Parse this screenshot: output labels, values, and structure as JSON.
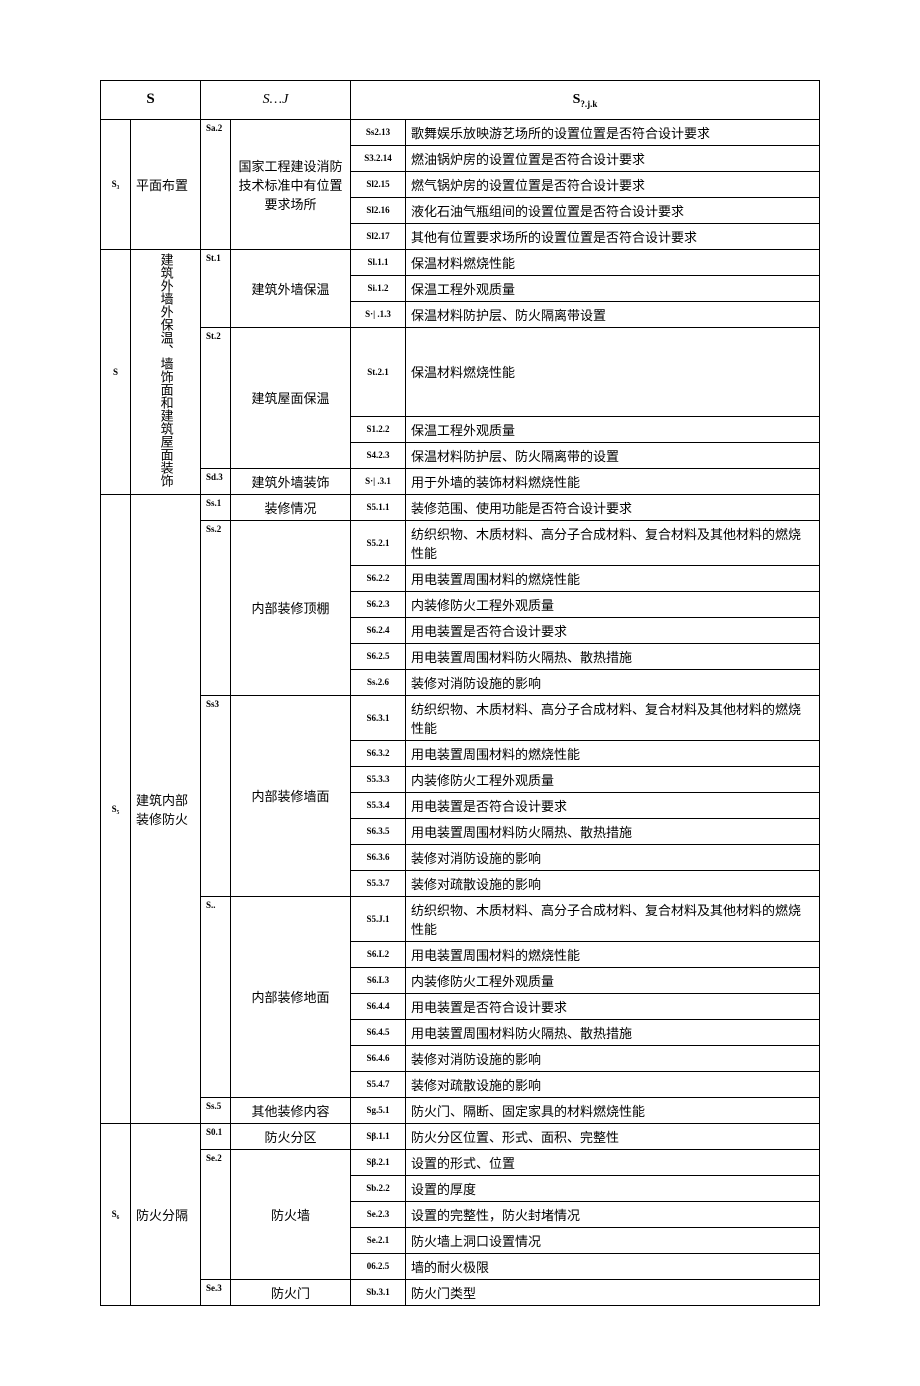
{
  "headers": {
    "s": "S",
    "sj": "S…J",
    "sjk_prefix": "S",
    "sjk_sub": "?.j.k"
  },
  "groups": [
    {
      "sid": "S₃",
      "sname": "平面布置",
      "subs": [
        {
          "jid": "Sa.2",
          "jname": "国家工程建设消防技术标准中有位置要求场所",
          "items": [
            {
              "kid": "Ss2.13",
              "kname": "歌舞娱乐放映游艺场所的设置位置是否符合设计要求"
            },
            {
              "kid": "S3.2.14",
              "kname": "燃油锅炉房的设置位置是否符合设计要求"
            },
            {
              "kid": "Sl2.15",
              "kname": "燃气锅炉房的设置位置是否符合设计要求"
            },
            {
              "kid": "Sl2.16",
              "kname": "液化石油气瓶组间的设置位置是否符合设计要求"
            },
            {
              "kid": "Sl2.17",
              "kname": "其他有位置要求场所的设置位置是否符合设计要求"
            }
          ]
        }
      ]
    },
    {
      "sid": "S",
      "sname_vertical": "建筑外墙外保温、墙饰面和建筑屋面装饰",
      "subs": [
        {
          "jid": "St.1",
          "jname": "建筑外墙保温",
          "items": [
            {
              "kid": "Sl.1.1",
              "kname": "保温材料燃烧性能"
            },
            {
              "kid": "Si.1.2",
              "kname": "保温工程外观质量"
            },
            {
              "kid": "S·| .1.3",
              "kname": "保温材料防护层、防火隔离带设置"
            }
          ]
        },
        {
          "jid": "St.2",
          "jname": "建筑屋面保温",
          "items": [
            {
              "kid": "St.2.1",
              "kname": "保温材料燃烧性能"
            },
            {
              "kid": "S1.2.2",
              "kname": "保温工程外观质量"
            },
            {
              "kid": "S4.2.3",
              "kname": "保温材料防护层、防火隔离带的设置"
            }
          ]
        },
        {
          "jid": "Sd.3",
          "jname": "建筑外墙装饰",
          "items": [
            {
              "kid": "S·| .3.1",
              "kname": "用于外墙的装饰材料燃烧性能"
            }
          ]
        }
      ]
    },
    {
      "sid": "S₅",
      "sname": "建筑内部装修防火",
      "subs": [
        {
          "jid": "Ss.1",
          "jname": "装修情况",
          "items": [
            {
              "kid": "S5.1.1",
              "kname": "装修范围、使用功能是否符合设计要求"
            }
          ]
        },
        {
          "jid": "Ss.2",
          "jname": "内部装修顶棚",
          "items": [
            {
              "kid": "S5.2.1",
              "kname": "纺织织物、木质材料、高分子合成材料、复合材料及其他材料的燃烧性能"
            },
            {
              "kid": "S6.2.2",
              "kname": "用电装置周围材料的燃烧性能"
            },
            {
              "kid": "S6.2.3",
              "kname": "内装修防火工程外观质量"
            },
            {
              "kid": "S6.2.4",
              "kname": "用电装置是否符合设计要求"
            },
            {
              "kid": "S6.2.5",
              "kname": "用电装置周围材料防火隔热、散热措施"
            },
            {
              "kid": "Ss.2.6",
              "kname": "装修对消防设施的影响"
            }
          ]
        },
        {
          "jid": "Ss3",
          "jname": "内部装修墙面",
          "items": [
            {
              "kid": "S6.3.1",
              "kname": "纺织织物、木质材料、高分子合成材料、复合材料及其他材料的燃烧性能"
            },
            {
              "kid": "S6.3.2",
              "kname": "用电装置周围材料的燃烧性能"
            },
            {
              "kid": "S5.3.3",
              "kname": "内装修防火工程外观质量"
            },
            {
              "kid": "S5.3.4",
              "kname": "用电装置是否符合设计要求"
            },
            {
              "kid": "S6.3.5",
              "kname": "用电装置周围材料防火隔热、散热措施"
            },
            {
              "kid": "S6.3.6",
              "kname": "装修对消防设施的影响"
            },
            {
              "kid": "S5.3.7",
              "kname": "装修对疏散设施的影响"
            }
          ]
        },
        {
          "jid": "S..",
          "jname": "内部装修地面",
          "items": [
            {
              "kid": "S5.J.1",
              "kname": "纺织织物、木质材料、高分子合成材料、复合材料及其他材料的燃烧性能"
            },
            {
              "kid": "S6.L2",
              "kname": "用电装置周围材料的燃烧性能"
            },
            {
              "kid": "S6.L3",
              "kname": "内装修防火工程外观质量"
            },
            {
              "kid": "S6.4.4",
              "kname": "用电装置是否符合设计要求"
            },
            {
              "kid": "S6.4.5",
              "kname": "用电装置周围材料防火隔热、散热措施"
            },
            {
              "kid": "S6.4.6",
              "kname": "装修对消防设施的影响"
            },
            {
              "kid": "S5.4.7",
              "kname": "装修对疏散设施的影响"
            }
          ]
        },
        {
          "jid": "Ss.5",
          "jname": "其他装修内容",
          "items": [
            {
              "kid": "Sg.5.1",
              "kname": "防火门、隔断、固定家具的材料燃烧性能"
            }
          ]
        }
      ]
    },
    {
      "sid": "S₆",
      "sname": "防火分隔",
      "subs": [
        {
          "jid": "S0.1",
          "jname": "防火分区",
          "items": [
            {
              "kid": "Sβ.1.1",
              "kname": "防火分区位置、形式、面积、完整性"
            }
          ]
        },
        {
          "jid": "Se.2",
          "jname": "防火墙",
          "items": [
            {
              "kid": "Sβ.2.1",
              "kname": "设置的形式、位置"
            },
            {
              "kid": "Sb.2.2",
              "kname": "设置的厚度"
            },
            {
              "kid": "Se.2.3",
              "kname": "设置的完整性，防火封堵情况"
            },
            {
              "kid": "Se.2.1",
              "kname": "防火墙上洞口设置情况"
            },
            {
              "kid": "06.2.5",
              "kname": "墙的耐火极限"
            }
          ]
        },
        {
          "jid": "Se.3",
          "jname": "防火门",
          "items": [
            {
              "kid": "Sb.3.1",
              "kname": "防火门类型"
            }
          ]
        }
      ]
    }
  ]
}
